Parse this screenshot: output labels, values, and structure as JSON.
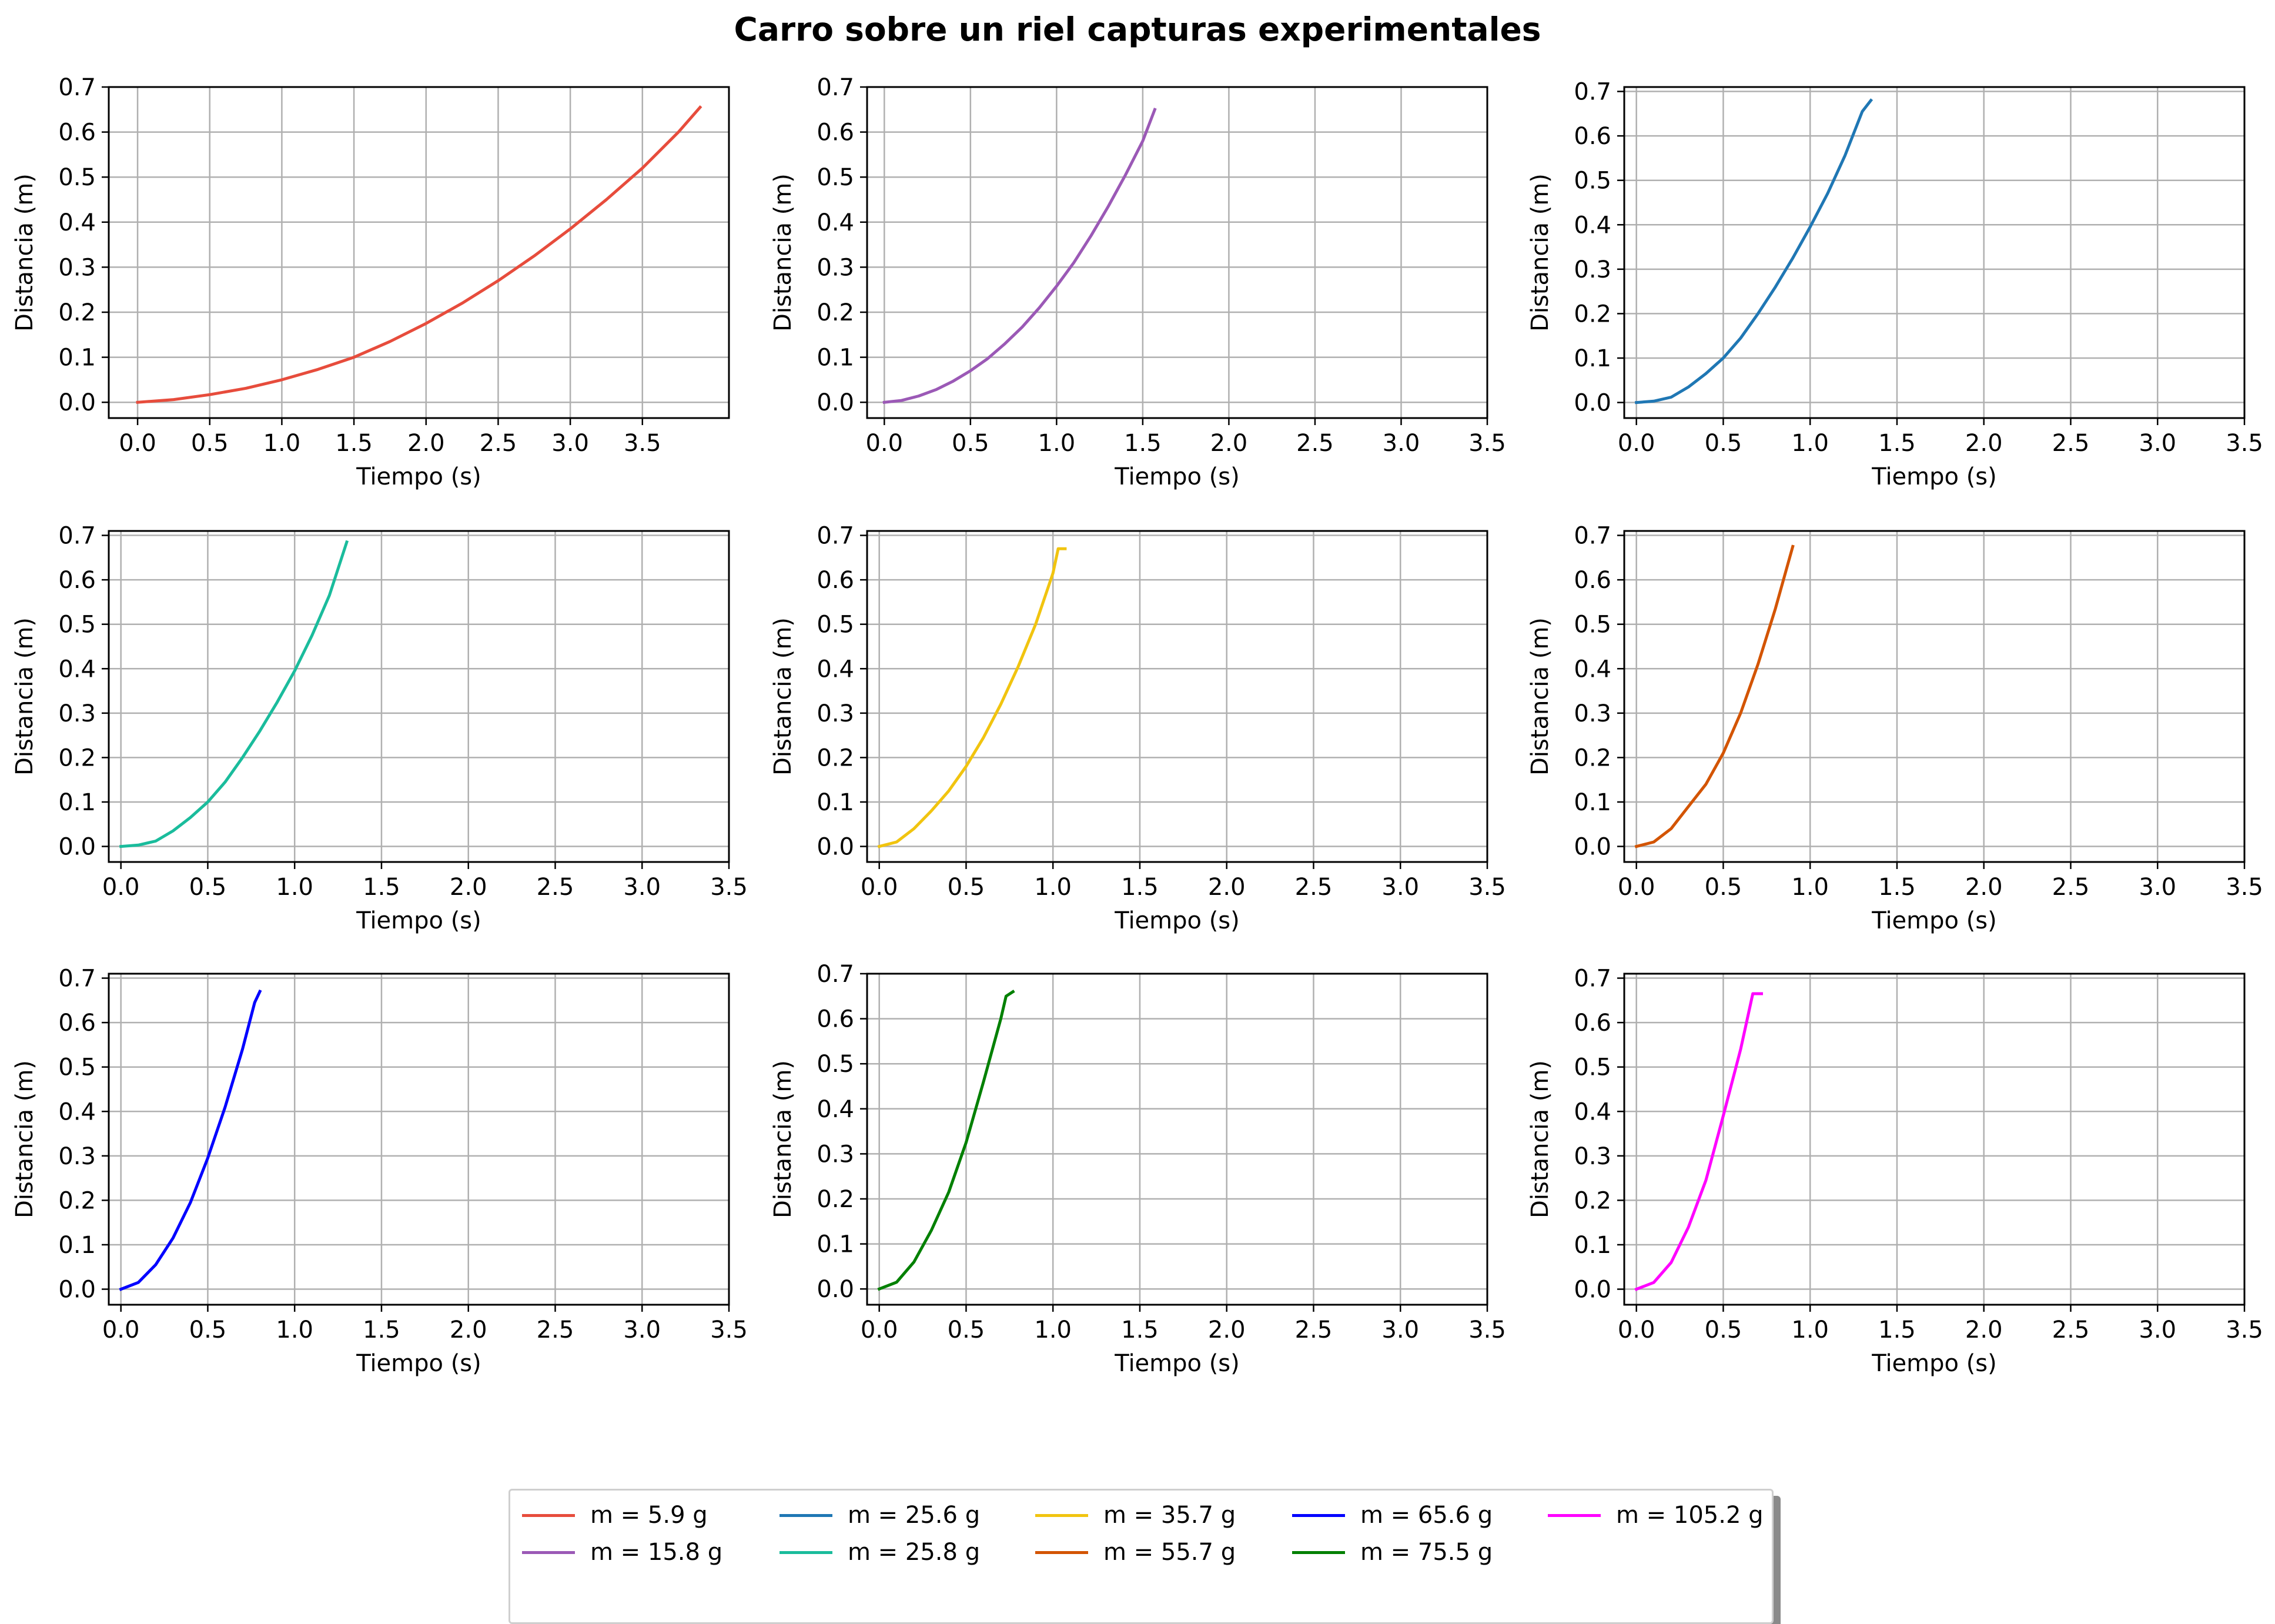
{
  "title": "Carro sobre un riel capturas experimentales",
  "chart_data": [
    {
      "type": "line",
      "xlabel": "Tiempo (s)",
      "ylabel": "Distancia (m)",
      "xlim": [
        -0.2,
        4.1
      ],
      "ylim": [
        -0.035,
        0.7
      ],
      "xticks": [
        "0.0",
        "0.5",
        "1.0",
        "1.5",
        "2.0",
        "2.5",
        "3.0",
        "3.5"
      ],
      "yticks": [
        "0.0",
        "0.1",
        "0.2",
        "0.3",
        "0.4",
        "0.5",
        "0.6",
        "0.7"
      ],
      "grid": true,
      "series": [
        {
          "name": "m = 5.9 g",
          "color": "#e74c3c",
          "x": [
            0.0,
            0.25,
            0.5,
            0.75,
            1.0,
            1.25,
            1.5,
            1.75,
            2.0,
            2.25,
            2.5,
            2.75,
            3.0,
            3.25,
            3.5,
            3.75,
            3.9
          ],
          "y": [
            0.0,
            0.006,
            0.017,
            0.031,
            0.05,
            0.073,
            0.1,
            0.135,
            0.175,
            0.22,
            0.27,
            0.325,
            0.385,
            0.45,
            0.52,
            0.6,
            0.655
          ]
        }
      ]
    },
    {
      "type": "line",
      "xlabel": "Tiempo (s)",
      "ylabel": "Distancia (m)",
      "xlim": [
        -0.1,
        3.5
      ],
      "ylim": [
        -0.035,
        0.7
      ],
      "xticks": [
        "0.0",
        "0.5",
        "1.0",
        "1.5",
        "2.0",
        "2.5",
        "3.0",
        "3.5"
      ],
      "yticks": [
        "0.0",
        "0.1",
        "0.2",
        "0.3",
        "0.4",
        "0.5",
        "0.6",
        "0.7"
      ],
      "grid": true,
      "series": [
        {
          "name": "m = 15.8 g",
          "color": "#9b59b6",
          "x": [
            0.0,
            0.1,
            0.2,
            0.3,
            0.4,
            0.5,
            0.6,
            0.7,
            0.8,
            0.9,
            1.0,
            1.1,
            1.2,
            1.3,
            1.4,
            1.5,
            1.57
          ],
          "y": [
            0.0,
            0.004,
            0.014,
            0.028,
            0.047,
            0.07,
            0.097,
            0.13,
            0.167,
            0.21,
            0.258,
            0.31,
            0.37,
            0.435,
            0.505,
            0.58,
            0.65
          ]
        }
      ]
    },
    {
      "type": "line",
      "xlabel": "Tiempo (s)",
      "ylabel": "Distancia (m)",
      "xlim": [
        -0.07,
        3.5
      ],
      "ylim": [
        -0.035,
        0.71
      ],
      "xticks": [
        "0.0",
        "0.5",
        "1.0",
        "1.5",
        "2.0",
        "2.5",
        "3.0",
        "3.5"
      ],
      "yticks": [
        "0.0",
        "0.1",
        "0.2",
        "0.3",
        "0.4",
        "0.5",
        "0.6",
        "0.7"
      ],
      "grid": true,
      "series": [
        {
          "name": "m = 25.6 g",
          "color": "#1f77b4",
          "x": [
            0.0,
            0.1,
            0.2,
            0.3,
            0.4,
            0.5,
            0.6,
            0.7,
            0.8,
            0.9,
            1.0,
            1.1,
            1.2,
            1.3,
            1.35
          ],
          "y": [
            0.0,
            0.003,
            0.012,
            0.035,
            0.065,
            0.1,
            0.145,
            0.2,
            0.26,
            0.325,
            0.395,
            0.47,
            0.555,
            0.655,
            0.68
          ]
        }
      ]
    },
    {
      "type": "line",
      "xlabel": "Tiempo (s)",
      "ylabel": "Distancia (m)",
      "xlim": [
        -0.07,
        3.5
      ],
      "ylim": [
        -0.035,
        0.71
      ],
      "xticks": [
        "0.0",
        "0.5",
        "1.0",
        "1.5",
        "2.0",
        "2.5",
        "3.0",
        "3.5"
      ],
      "yticks": [
        "0.0",
        "0.1",
        "0.2",
        "0.3",
        "0.4",
        "0.5",
        "0.6",
        "0.7"
      ],
      "grid": true,
      "series": [
        {
          "name": "m = 25.8 g",
          "color": "#1abc9c",
          "x": [
            0.0,
            0.1,
            0.2,
            0.3,
            0.4,
            0.5,
            0.6,
            0.7,
            0.8,
            0.9,
            1.0,
            1.1,
            1.2,
            1.3
          ],
          "y": [
            0.0,
            0.003,
            0.012,
            0.035,
            0.065,
            0.1,
            0.145,
            0.2,
            0.26,
            0.325,
            0.395,
            0.475,
            0.565,
            0.685
          ]
        }
      ]
    },
    {
      "type": "line",
      "xlabel": "Tiempo (s)",
      "ylabel": "Distancia (m)",
      "xlim": [
        -0.07,
        3.5
      ],
      "ylim": [
        -0.035,
        0.71
      ],
      "xticks": [
        "0.0",
        "0.5",
        "1.0",
        "1.5",
        "2.0",
        "2.5",
        "3.0",
        "3.5"
      ],
      "yticks": [
        "0.0",
        "0.1",
        "0.2",
        "0.3",
        "0.4",
        "0.5",
        "0.6",
        "0.7"
      ],
      "grid": true,
      "series": [
        {
          "name": "m = 35.7 g",
          "color": "#f1c40f",
          "x": [
            0.0,
            0.1,
            0.2,
            0.3,
            0.4,
            0.5,
            0.6,
            0.7,
            0.8,
            0.9,
            1.0,
            1.03,
            1.07
          ],
          "y": [
            0.0,
            0.01,
            0.04,
            0.08,
            0.125,
            0.18,
            0.245,
            0.32,
            0.405,
            0.5,
            0.615,
            0.67,
            0.67
          ]
        }
      ]
    },
    {
      "type": "line",
      "xlabel": "Tiempo (s)",
      "ylabel": "Distancia (m)",
      "xlim": [
        -0.07,
        3.5
      ],
      "ylim": [
        -0.035,
        0.71
      ],
      "xticks": [
        "0.0",
        "0.5",
        "1.0",
        "1.5",
        "2.0",
        "2.5",
        "3.0",
        "3.5"
      ],
      "yticks": [
        "0.0",
        "0.1",
        "0.2",
        "0.3",
        "0.4",
        "0.5",
        "0.6",
        "0.7"
      ],
      "grid": true,
      "series": [
        {
          "name": "m = 55.7 g",
          "color": "#d35400",
          "x": [
            0.0,
            0.1,
            0.2,
            0.3,
            0.4,
            0.5,
            0.6,
            0.7,
            0.8,
            0.9
          ],
          "y": [
            0.0,
            0.01,
            0.04,
            0.09,
            0.14,
            0.21,
            0.3,
            0.41,
            0.535,
            0.675
          ]
        }
      ]
    },
    {
      "type": "line",
      "xlabel": "Tiempo (s)",
      "ylabel": "Distancia (m)",
      "xlim": [
        -0.07,
        3.5
      ],
      "ylim": [
        -0.035,
        0.71
      ],
      "xticks": [
        "0.0",
        "0.5",
        "1.0",
        "1.5",
        "2.0",
        "2.5",
        "3.0",
        "3.5"
      ],
      "yticks": [
        "0.0",
        "0.1",
        "0.2",
        "0.3",
        "0.4",
        "0.5",
        "0.6",
        "0.7"
      ],
      "grid": true,
      "series": [
        {
          "name": "m = 65.6 g",
          "color": "#0000ff",
          "x": [
            0.0,
            0.1,
            0.2,
            0.3,
            0.4,
            0.5,
            0.6,
            0.7,
            0.77,
            0.8
          ],
          "y": [
            0.0,
            0.015,
            0.055,
            0.115,
            0.195,
            0.295,
            0.41,
            0.54,
            0.645,
            0.67
          ]
        }
      ]
    },
    {
      "type": "line",
      "xlabel": "Tiempo (s)",
      "ylabel": "Distancia (m)",
      "xlim": [
        -0.07,
        3.5
      ],
      "ylim": [
        -0.035,
        0.7
      ],
      "xticks": [
        "0.0",
        "0.5",
        "1.0",
        "1.5",
        "2.0",
        "2.5",
        "3.0",
        "3.5"
      ],
      "yticks": [
        "0.0",
        "0.1",
        "0.2",
        "0.3",
        "0.4",
        "0.5",
        "0.6",
        "0.7"
      ],
      "grid": true,
      "series": [
        {
          "name": "m = 75.5 g",
          "color": "#008000",
          "x": [
            0.0,
            0.1,
            0.2,
            0.3,
            0.4,
            0.5,
            0.6,
            0.7,
            0.73,
            0.77
          ],
          "y": [
            0.0,
            0.015,
            0.06,
            0.13,
            0.215,
            0.325,
            0.46,
            0.6,
            0.65,
            0.66
          ]
        }
      ]
    },
    {
      "type": "line",
      "xlabel": "Tiempo (s)",
      "ylabel": "Distancia (m)",
      "xlim": [
        -0.07,
        3.5
      ],
      "ylim": [
        -0.035,
        0.71
      ],
      "xticks": [
        "0.0",
        "0.5",
        "1.0",
        "1.5",
        "2.0",
        "2.5",
        "3.0",
        "3.5"
      ],
      "yticks": [
        "0.0",
        "0.1",
        "0.2",
        "0.3",
        "0.4",
        "0.5",
        "0.6",
        "0.7"
      ],
      "grid": true,
      "series": [
        {
          "name": "m = 105.2 g",
          "color": "#ff00ff",
          "x": [
            0.0,
            0.1,
            0.2,
            0.3,
            0.4,
            0.5,
            0.6,
            0.67,
            0.72
          ],
          "y": [
            0.0,
            0.015,
            0.06,
            0.14,
            0.245,
            0.39,
            0.54,
            0.665,
            0.665
          ]
        }
      ]
    }
  ],
  "legend": {
    "placement": "bottom-center",
    "entries": [
      {
        "label": "m = 5.9 g",
        "color": "#e74c3c"
      },
      {
        "label": "m = 15.8 g",
        "color": "#9b59b6"
      },
      {
        "label": "m = 25.6 g",
        "color": "#1f77b4"
      },
      {
        "label": "m = 25.8 g",
        "color": "#1abc9c"
      },
      {
        "label": "m = 35.7 g",
        "color": "#f1c40f"
      },
      {
        "label": "m = 55.7 g",
        "color": "#d35400"
      },
      {
        "label": "m = 65.6 g",
        "color": "#0000ff"
      },
      {
        "label": "m = 75.5 g",
        "color": "#008000"
      },
      {
        "label": "m = 105.2 g",
        "color": "#ff00ff"
      }
    ]
  }
}
